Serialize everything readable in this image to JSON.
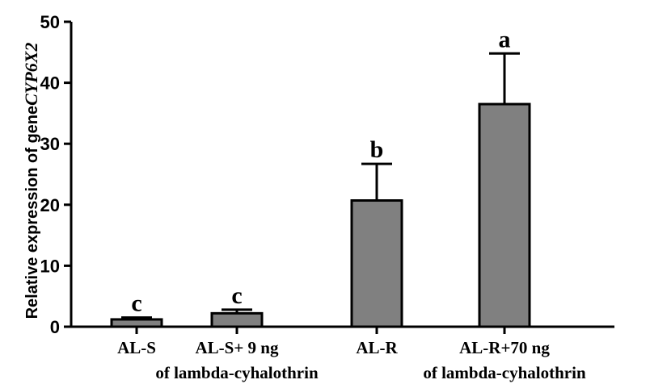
{
  "chart_data": {
    "type": "bar",
    "categories": [
      {
        "line1": "AL-S",
        "line2": ""
      },
      {
        "line1": "AL-S+ 9 ng",
        "line2": "of lambda-cyhalothrin"
      },
      {
        "line1": "AL-R",
        "line2": ""
      },
      {
        "line1": "AL-R+70 ng",
        "line2": "of lambda-cyhalothrin"
      }
    ],
    "values": [
      1.2,
      2.2,
      20.7,
      36.5
    ],
    "errors": [
      0.3,
      0.6,
      6.0,
      8.3
    ],
    "significance": [
      "c",
      "c",
      "b",
      "a"
    ],
    "ylabel_prefix": "Relative expression of gene",
    "ylabel_gene": "CYP6X2",
    "ylim": [
      0,
      50
    ],
    "yticks": [
      0,
      10,
      20,
      30,
      40,
      50
    ],
    "grid": false,
    "colors": {
      "bar": "#808080",
      "outline": "#000000"
    }
  }
}
